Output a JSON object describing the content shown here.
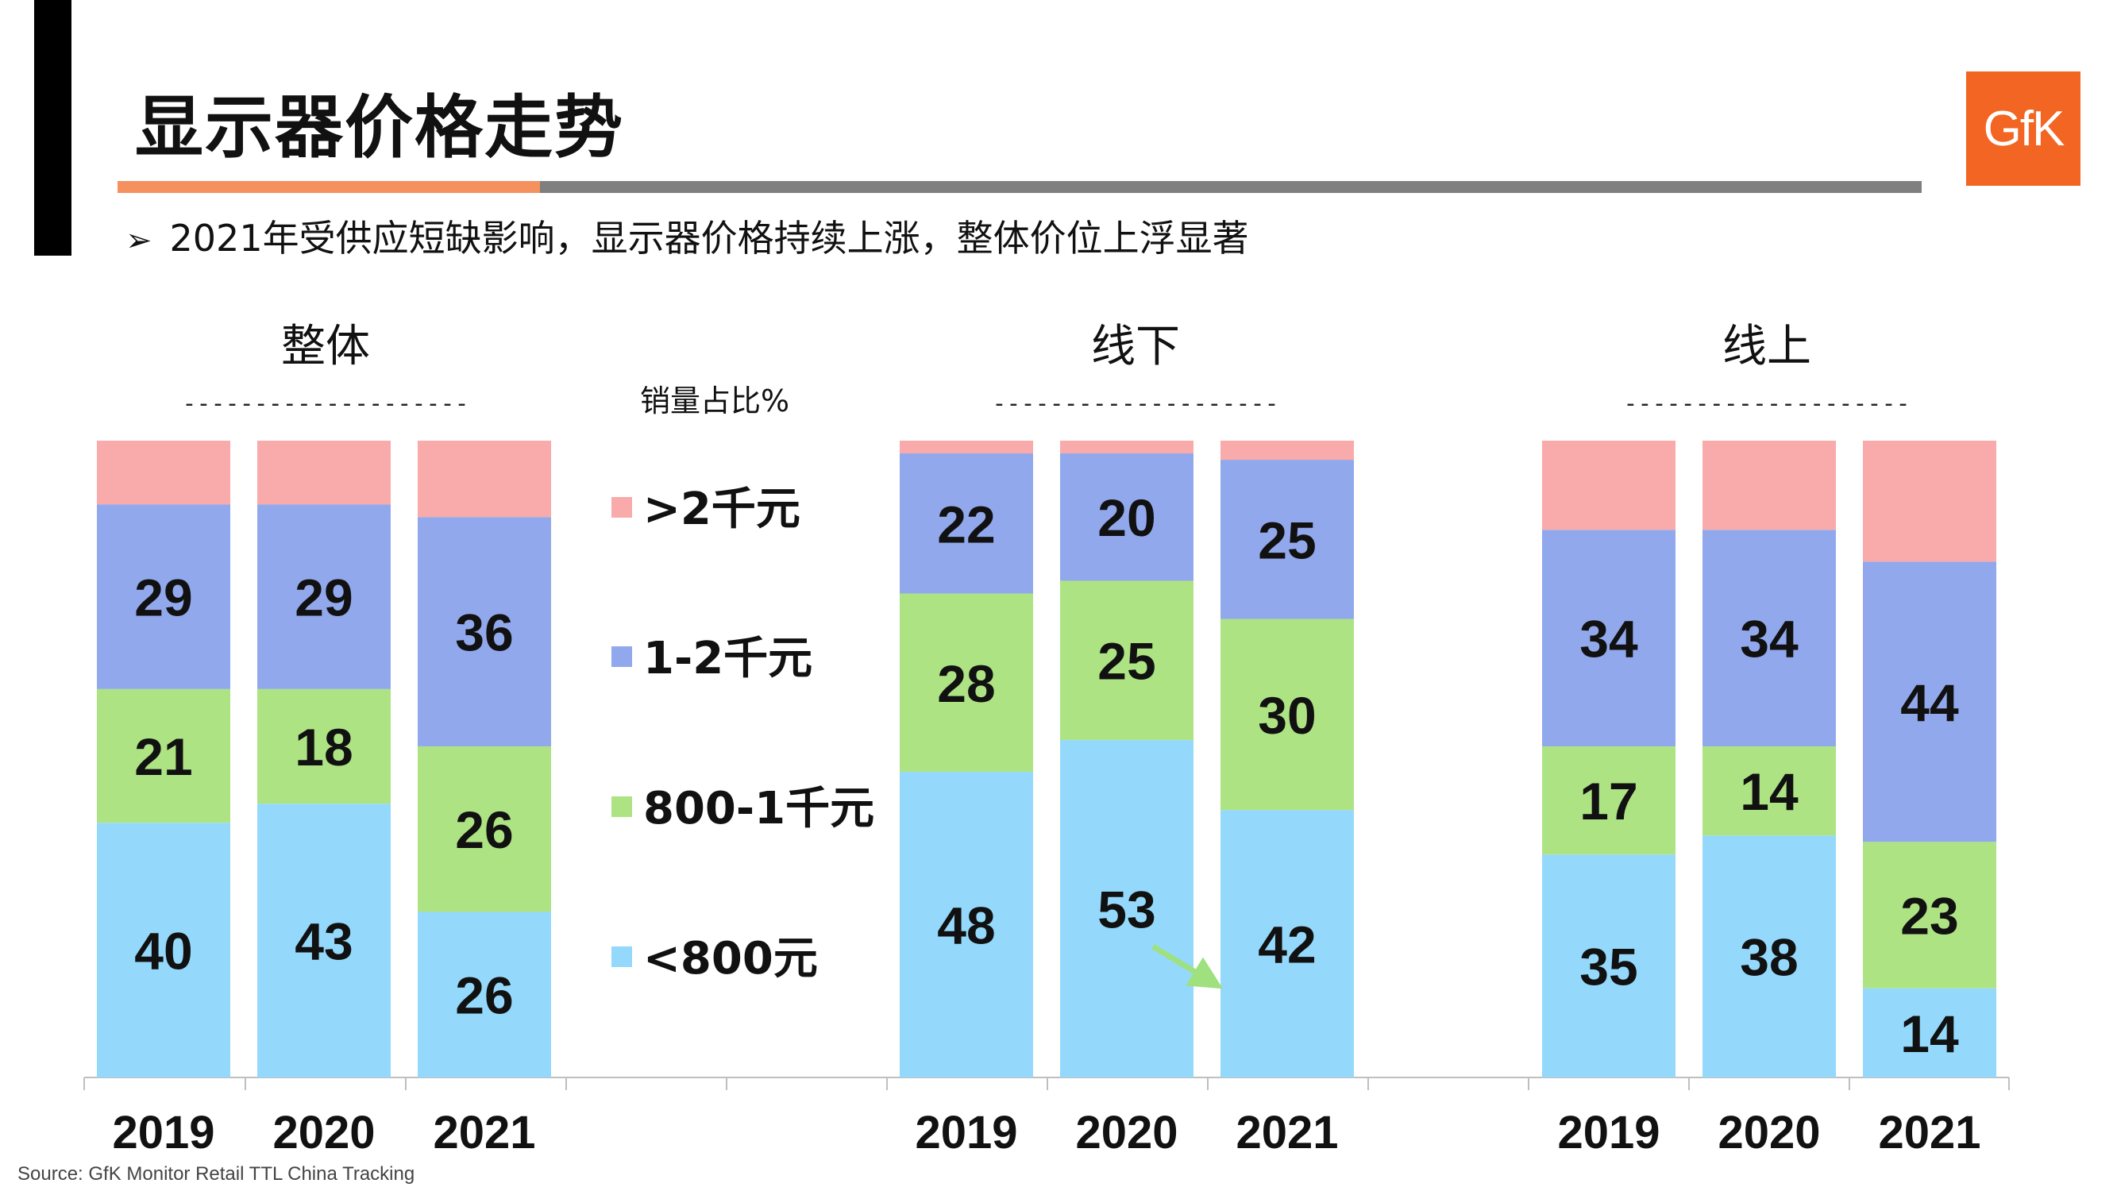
{
  "page": {
    "title": "显示器价格走势",
    "bullet": "2021年受供应短缺影响，显示器价格持续上涨，整体价位上浮显著",
    "bullet_marker": "➢",
    "logo": "GfK",
    "source": "Source: GfK Monitor Retail TTL China Tracking",
    "accent_colors": {
      "orange": "#f4915e",
      "gray": "#7f7f7f",
      "logo_orange": "#f26522"
    }
  },
  "chart_data": {
    "type": "bar",
    "stacked": true,
    "normalized_percent": true,
    "ylabel": "销量占比%",
    "ylim": [
      0,
      100
    ],
    "grid": false,
    "legend_position": "center",
    "groups": [
      {
        "title": "整体",
        "title_dashes": "--------------------",
        "categories": [
          "2019",
          "2020",
          "2021"
        ],
        "series": [
          {
            "name": "<800元",
            "values": [
              40,
              43,
              26
            ]
          },
          {
            "name": "800-1千元",
            "values": [
              21,
              18,
              26
            ]
          },
          {
            "name": "1-2千元",
            "values": [
              29,
              29,
              36
            ]
          },
          {
            "name": ">2千元",
            "values": [
              10,
              10,
              12
            ]
          }
        ]
      },
      {
        "title": "线下",
        "title_dashes": "--------------------",
        "categories": [
          "2019",
          "2020",
          "2021"
        ],
        "series": [
          {
            "name": "<800元",
            "values": [
              48,
              53,
              42
            ]
          },
          {
            "name": "800-1千元",
            "values": [
              28,
              25,
              30
            ]
          },
          {
            "name": "1-2千元",
            "values": [
              22,
              20,
              25
            ]
          },
          {
            "name": ">2千元",
            "values": [
              2,
              2,
              3
            ]
          }
        ]
      },
      {
        "title": "线上",
        "title_dashes": "--------------------",
        "categories": [
          "2019",
          "2020",
          "2021"
        ],
        "series": [
          {
            "name": "<800元",
            "values": [
              35,
              38,
              14
            ]
          },
          {
            "name": "800-1千元",
            "values": [
              17,
              14,
              23
            ]
          },
          {
            "name": "1-2千元",
            "values": [
              34,
              34,
              44
            ]
          },
          {
            "name": ">2千元",
            "values": [
              14,
              14,
              19
            ]
          }
        ]
      }
    ],
    "labeled_series": [
      "<800元",
      "800-1千元",
      "1-2千元"
    ],
    "legend": [
      {
        "name": ">2千元",
        "color": "#f9aaaa"
      },
      {
        "name": "1-2千元",
        "color": "#91a8ec"
      },
      {
        "name": "800-1千元",
        "color": "#aee384"
      },
      {
        "name": "<800元",
        "color": "#94d9fb"
      }
    ],
    "colors": {
      "<800元": "#94d9fb",
      "800-1千元": "#aee384",
      "1-2千元": "#91a8ec",
      ">2千元": "#f9aaaa"
    },
    "annotation": {
      "type": "arrow",
      "group": "线下",
      "from_category": "2020",
      "to_category": "2021",
      "color": "#9fe07f"
    }
  }
}
